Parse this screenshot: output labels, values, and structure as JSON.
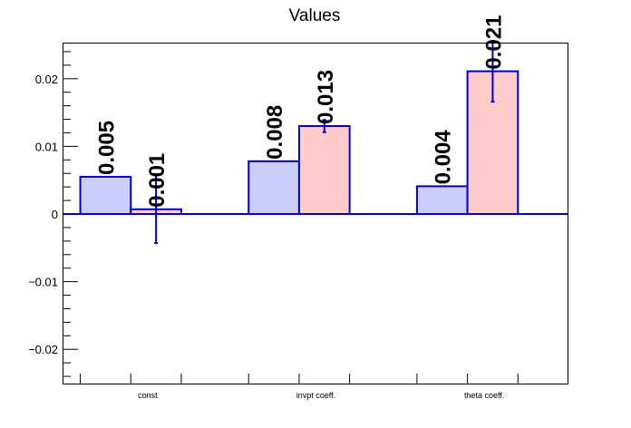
{
  "chart_data": {
    "type": "bar",
    "title": "Values",
    "categories": [
      "const",
      "invpt coeff.",
      "theta coeff."
    ],
    "series": [
      {
        "values": [
          0.0055,
          0.0078,
          0.0041
        ],
        "labels": [
          "0.005",
          "0.008",
          "0.004"
        ],
        "errors": [
          null,
          null,
          null
        ],
        "fill": "#ccccff"
      },
      {
        "values": [
          0.0007,
          0.013,
          0.0211
        ],
        "labels": [
          "0.001",
          "0.013",
          "0.021"
        ],
        "errors": [
          0.005,
          0.0009,
          0.0045
        ],
        "fill": "#ffcccc"
      }
    ],
    "ylim": [
      -0.0252,
      0.0252
    ],
    "yticks": [
      -0.02,
      -0.01,
      0,
      0.01,
      0.02
    ],
    "ytick_labels": [
      "−0.02",
      "−0.01",
      "0",
      "0.01",
      "0.02"
    ],
    "xlabel": "",
    "ylabel": "",
    "grid": false,
    "legend": "none",
    "colors": {
      "outline": "#0000cc",
      "axis": "#000000",
      "zero_line": "#0000cc"
    }
  }
}
